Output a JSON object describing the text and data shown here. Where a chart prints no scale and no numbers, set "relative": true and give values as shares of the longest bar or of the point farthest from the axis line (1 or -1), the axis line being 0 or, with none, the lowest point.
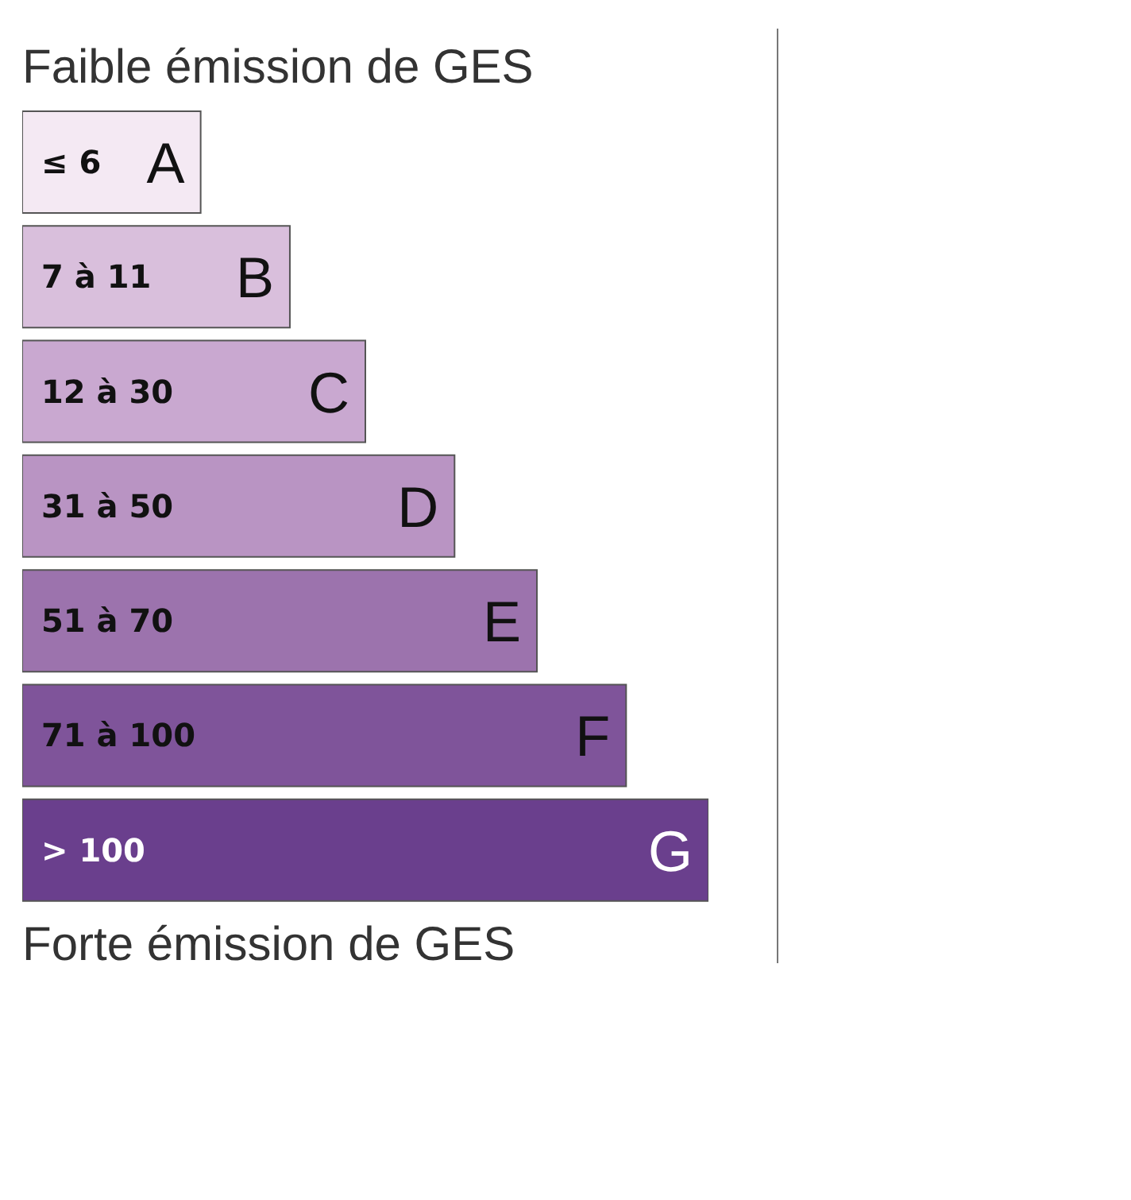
{
  "chart_data": {
    "type": "bar",
    "orientation": "horizontal",
    "relative": true,
    "title": "Faible émission de GES",
    "categories": [
      "≤ 6",
      "7 à 11",
      "12 à 30",
      "31 à 50",
      "51 à 70",
      "71 à 100",
      "> 100"
    ],
    "values": [
      0.26,
      0.39,
      0.5,
      0.63,
      0.75,
      0.88,
      1
    ],
    "colors": [
      "#f4e9f3",
      "#d9bfdc",
      "#c9a8d0",
      "#b994c3",
      "#9c73ad",
      "#7f549a",
      "#6a3f8d"
    ],
    "annotations": [
      {
        "text": "A",
        "x": 0.26,
        "y": "≤ 6"
      },
      {
        "text": "B",
        "x": 0.39,
        "y": "7 à 11"
      },
      {
        "text": "C",
        "x": 0.5,
        "y": "12 à 30"
      },
      {
        "text": "D",
        "x": 0.63,
        "y": "31 à 50"
      },
      {
        "text": "E",
        "x": 0.75,
        "y": "51 à 70"
      },
      {
        "text": "F",
        "x": 0.88,
        "y": "71 à 100"
      },
      {
        "text": "G",
        "x": 1,
        "y": "> 100"
      },
      "Forte émission de GES"
    ],
    "grid": false,
    "legend": false
  }
}
